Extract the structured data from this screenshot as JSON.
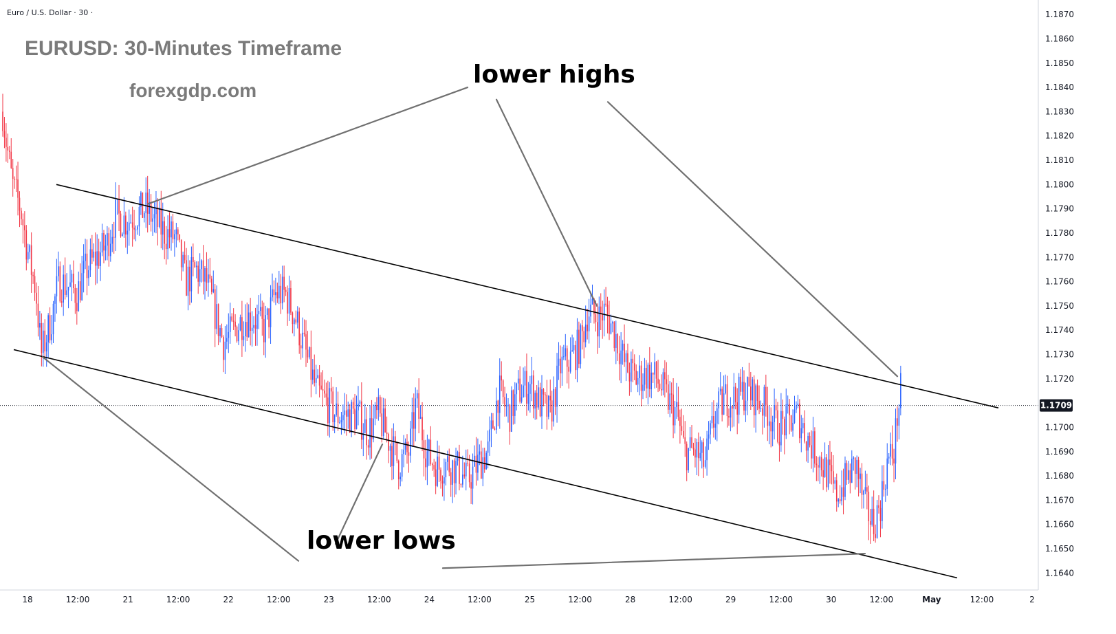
{
  "chart_data": {
    "type": "candlestick",
    "symbol_label": "Euro / U.S. Dollar · 30 ·",
    "title": "EURUSD: 30-Minutes Timeframe",
    "subtitle": "forexgdp.com",
    "ylim": [
      1.1635,
      1.1874
    ],
    "y_ticks": [
      "1.1870",
      "1.1860",
      "1.1850",
      "1.1840",
      "1.1830",
      "1.1820",
      "1.1810",
      "1.1800",
      "1.1790",
      "1.1780",
      "1.1770",
      "1.1760",
      "1.1750",
      "1.1740",
      "1.1730",
      "1.1720",
      "1.1700",
      "1.1690",
      "1.1680",
      "1.1670",
      "1.1660",
      "1.1650",
      "1.1640"
    ],
    "x_ticks": [
      "18",
      "12:00",
      "21",
      "12:00",
      "22",
      "12:00",
      "23",
      "12:00",
      "24",
      "12:00",
      "25",
      "12:00",
      "28",
      "12:00",
      "29",
      "12:00",
      "30",
      "12:00",
      "May",
      "12:00",
      "2"
    ],
    "current_price": "1.1709",
    "colors": {
      "up": "#2962ff",
      "down": "#f23645",
      "trendline": "#000000",
      "pointer": "#707070"
    },
    "grid": false,
    "price_path": [
      [
        0,
        1.184
      ],
      [
        8,
        1.182
      ],
      [
        18,
        1.18
      ],
      [
        30,
        1.179
      ],
      [
        42,
        1.177
      ],
      [
        52,
        1.1757
      ],
      [
        60,
        1.173
      ],
      [
        75,
        1.1745
      ],
      [
        85,
        1.176
      ],
      [
        100,
        1.1758
      ],
      [
        112,
        1.1755
      ],
      [
        125,
        1.1765
      ],
      [
        140,
        1.177
      ],
      [
        155,
        1.1775
      ],
      [
        168,
        1.1787
      ],
      [
        185,
        1.1785
      ],
      [
        200,
        1.1788
      ],
      [
        212,
        1.179
      ],
      [
        225,
        1.1785
      ],
      [
        240,
        1.178
      ],
      [
        255,
        1.1778
      ],
      [
        270,
        1.176
      ],
      [
        285,
        1.1765
      ],
      [
        300,
        1.176
      ],
      [
        310,
        1.175
      ],
      [
        325,
        1.1735
      ],
      [
        340,
        1.174
      ],
      [
        355,
        1.1745
      ],
      [
        370,
        1.1745
      ],
      [
        385,
        1.174
      ],
      [
        400,
        1.1755
      ],
      [
        415,
        1.1755
      ],
      [
        430,
        1.1745
      ],
      [
        445,
        1.173
      ],
      [
        460,
        1.1715
      ],
      [
        475,
        1.171
      ],
      [
        490,
        1.1705
      ],
      [
        505,
        1.1705
      ],
      [
        520,
        1.1705
      ],
      [
        535,
        1.1698
      ],
      [
        550,
        1.1705
      ],
      [
        565,
        1.1695
      ],
      [
        580,
        1.1685
      ],
      [
        595,
        1.169
      ],
      [
        605,
        1.171
      ],
      [
        620,
        1.169
      ],
      [
        635,
        1.1683
      ],
      [
        650,
        1.1685
      ],
      [
        665,
        1.1683
      ],
      [
        680,
        1.1678
      ],
      [
        695,
        1.1685
      ],
      [
        710,
        1.169
      ],
      [
        725,
        1.1715
      ],
      [
        740,
        1.1705
      ],
      [
        755,
        1.1715
      ],
      [
        770,
        1.1718
      ],
      [
        785,
        1.171
      ],
      [
        800,
        1.1705
      ],
      [
        815,
        1.1725
      ],
      [
        830,
        1.1728
      ],
      [
        845,
        1.1735
      ],
      [
        855,
        1.1748
      ],
      [
        870,
        1.1745
      ],
      [
        880,
        1.1748
      ],
      [
        895,
        1.1738
      ],
      [
        910,
        1.1725
      ],
      [
        925,
        1.172
      ],
      [
        940,
        1.1722
      ],
      [
        955,
        1.172
      ],
      [
        970,
        1.1712
      ],
      [
        985,
        1.1705
      ],
      [
        995,
        1.169
      ],
      [
        1010,
        1.169
      ],
      [
        1025,
        1.1685
      ],
      [
        1040,
        1.1705
      ],
      [
        1055,
        1.1712
      ],
      [
        1070,
        1.1712
      ],
      [
        1085,
        1.1715
      ],
      [
        1100,
        1.1712
      ],
      [
        1115,
        1.1708
      ],
      [
        1130,
        1.17
      ],
      [
        1145,
        1.1702
      ],
      [
        1160,
        1.1705
      ],
      [
        1175,
        1.1695
      ],
      [
        1190,
        1.1688
      ],
      [
        1205,
        1.168
      ],
      [
        1215,
        1.1672
      ],
      [
        1230,
        1.1678
      ],
      [
        1245,
        1.1685
      ],
      [
        1255,
        1.167
      ],
      [
        1270,
        1.166
      ],
      [
        1280,
        1.1668
      ],
      [
        1290,
        1.1685
      ],
      [
        1300,
        1.169
      ],
      [
        1305,
        1.1705
      ],
      [
        1310,
        1.1715
      ]
    ],
    "trendlines": [
      {
        "name": "upper-channel-line",
        "from": [
          82,
          1.18
        ],
        "to": [
          1452,
          1.1708
        ]
      },
      {
        "name": "lower-channel-line",
        "from": [
          20,
          1.1732
        ],
        "to": [
          1392,
          1.1638
        ]
      }
    ],
    "annotations": [
      {
        "text": "lower highs",
        "x": 688,
        "y": 1.1842
      },
      {
        "text": "lower lows",
        "x": 446,
        "y": 1.165
      }
    ],
    "pointers": [
      {
        "from": [
          680,
          1.184
        ],
        "to": [
          215,
          1.1792
        ]
      },
      {
        "from": [
          722,
          1.1835
        ],
        "to": [
          868,
          1.175
        ]
      },
      {
        "from": [
          884,
          1.1834
        ],
        "to": [
          1305,
          1.1721
        ]
      },
      {
        "from": [
          62,
          1.1729
        ],
        "to": [
          434,
          1.1645
        ]
      },
      {
        "from": [
          488,
          1.1652
        ],
        "to": [
          556,
          1.1693
        ]
      },
      {
        "from": [
          644,
          1.1642
        ],
        "to": [
          1258,
          1.1648
        ]
      }
    ]
  }
}
